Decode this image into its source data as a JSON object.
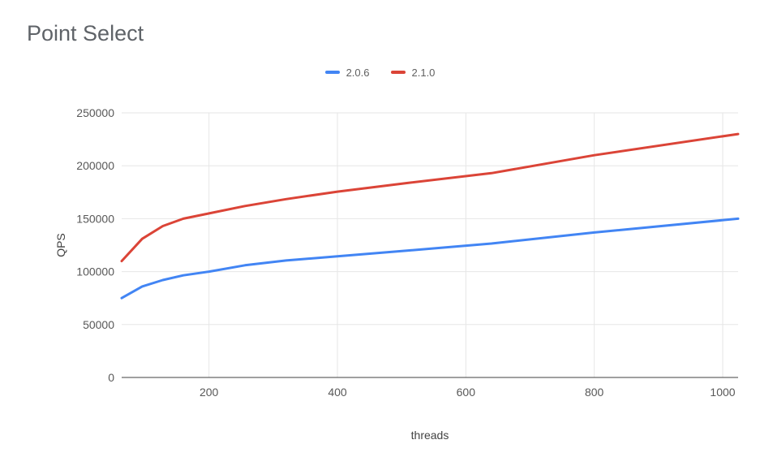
{
  "title": "Point Select",
  "chart_data": {
    "type": "line",
    "title": "Point Select",
    "xlabel": "threads",
    "ylabel": "QPS",
    "xlim": [
      64,
      1024
    ],
    "ylim": [
      0,
      250000
    ],
    "x_ticks": [
      200,
      400,
      600,
      800,
      1000
    ],
    "y_ticks": [
      0,
      50000,
      100000,
      150000,
      200000,
      250000
    ],
    "grid": true,
    "legend_position": "top-center",
    "x": [
      64,
      96,
      128,
      160,
      200,
      256,
      320,
      400,
      512,
      640,
      800,
      1024
    ],
    "series": [
      {
        "name": "2.0.6",
        "color": "#4285f4",
        "values": [
          75000,
          86000,
          92000,
          96500,
          100000,
          106000,
          110500,
          114500,
          120000,
          126500,
          137000,
          150000
        ]
      },
      {
        "name": "2.1.0",
        "color": "#db4437",
        "values": [
          110000,
          131000,
          143000,
          150000,
          155000,
          162000,
          168500,
          175500,
          184000,
          193000,
          210000,
          230000
        ]
      }
    ]
  },
  "colors": {
    "grid": "#e6e6e6",
    "baseline": "#424242",
    "tick_label": "#585858",
    "axis_title": "#424242",
    "title": "#5f6368",
    "legend_label": "#616161"
  }
}
